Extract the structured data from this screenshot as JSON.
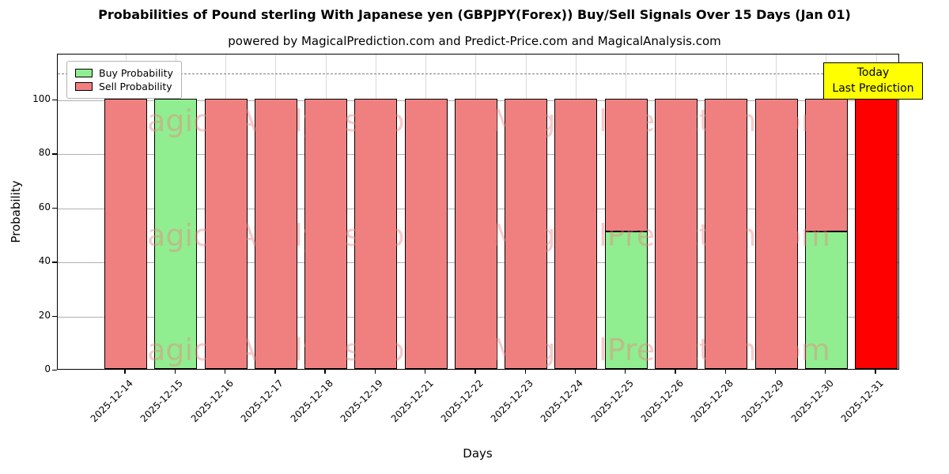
{
  "chart_data": {
    "type": "bar",
    "stacked": true,
    "title": "Probabilities of Pound sterling With Japanese yen (GBPJPY(Forex)) Buy/Sell Signals Over 15 Days (Jan 01)",
    "subtitle": "powered by MagicalPrediction.com and Predict-Price.com and MagicalAnalysis.com",
    "xlabel": "Days",
    "ylabel": "Probability",
    "ylim": [
      0,
      117
    ],
    "yticks": [
      0,
      20,
      40,
      60,
      80,
      100
    ],
    "grid": true,
    "threshold_line_y": 110,
    "categories": [
      "2025-12-14",
      "2025-12-15",
      "2025-12-16",
      "2025-12-17",
      "2025-12-18",
      "2025-12-19",
      "2025-12-21",
      "2025-12-22",
      "2025-12-23",
      "2025-12-24",
      "2025-12-25",
      "2025-12-26",
      "2025-12-28",
      "2025-12-29",
      "2025-12-30",
      "2025-12-31"
    ],
    "series": [
      {
        "name": "Buy Probability",
        "color": "#90ee90",
        "values": [
          0,
          100,
          0,
          0,
          0,
          0,
          0,
          0,
          0,
          0,
          51,
          0,
          0,
          0,
          51,
          0
        ]
      },
      {
        "name": "Sell Probability",
        "color": "#f08080",
        "values": [
          100,
          0,
          100,
          100,
          100,
          100,
          100,
          100,
          100,
          100,
          49,
          100,
          100,
          100,
          49,
          0
        ]
      }
    ],
    "today_bar": {
      "category": "2025-12-31",
      "value": 100,
      "color": "#ff0000"
    },
    "legend": {
      "position": "upper-left",
      "entries": [
        {
          "label": "Buy Probability",
          "color": "#90ee90"
        },
        {
          "label": "Sell Probability",
          "color": "#f08080"
        }
      ]
    },
    "annotation_box": {
      "lines": [
        "Today",
        "Last Prediction"
      ],
      "bg_color": "#ffff00"
    },
    "watermarks": [
      {
        "text": "MagicalAnalysis.com"
      },
      {
        "text": "MagicalPrediction.com"
      }
    ],
    "colors": {
      "buy": "#90ee90",
      "sell": "#f08080",
      "today": "#ff0000",
      "grid": "#b0b0b0"
    }
  }
}
